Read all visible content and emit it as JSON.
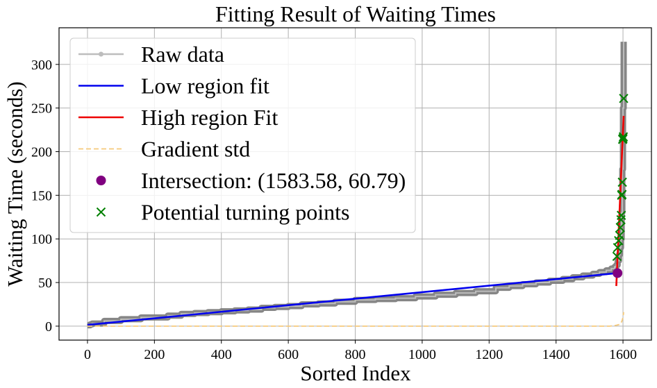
{
  "chart_data": {
    "type": "line",
    "title": "Fitting Result of Waiting Times",
    "xlabel": "Sorted Index",
    "ylabel": "Waiting Time (seconds)",
    "xlim": [
      -85,
      1685
    ],
    "ylim": [
      -16,
      342
    ],
    "xticks": [
      0,
      200,
      400,
      600,
      800,
      1000,
      1200,
      1400,
      1600
    ],
    "yticks": [
      0,
      50,
      100,
      150,
      200,
      250,
      300
    ],
    "grid": true,
    "legend_position": "top-left",
    "series": [
      {
        "name": "Raw data",
        "kind": "step-line",
        "color": "#808080",
        "x": [
          0,
          8,
          14,
          50,
          100,
          160,
          240,
          280,
          320,
          360,
          400,
          440,
          480,
          520,
          560,
          600,
          640,
          690,
          740,
          800,
          860,
          920,
          980,
          1040,
          1100,
          1160,
          1220,
          1260,
          1300,
          1340,
          1380,
          1420,
          1450,
          1480,
          1510,
          1530,
          1550,
          1565,
          1575,
          1580,
          1584,
          1588,
          1591,
          1594,
          1596,
          1598,
          1600,
          1602
        ],
        "y": [
          1,
          2,
          3,
          6,
          8,
          10,
          12,
          14,
          15,
          16,
          17,
          18,
          19,
          21,
          22,
          23,
          25,
          26,
          28,
          30,
          31,
          32,
          34,
          36,
          38,
          40,
          44,
          46,
          48,
          50,
          52,
          54,
          56,
          58,
          60,
          62,
          64,
          66,
          68,
          70,
          75,
          82,
          90,
          100,
          130,
          180,
          250,
          326
        ]
      },
      {
        "name": "Low region fit",
        "kind": "line",
        "color": "#0000ee",
        "x": [
          0,
          1583.58
        ],
        "y": [
          1.5,
          60.79
        ]
      },
      {
        "name": "High region Fit",
        "kind": "line",
        "color": "#ee0000",
        "x": [
          1580,
          1602
        ],
        "y": [
          46,
          241
        ]
      },
      {
        "name": "Gradient std",
        "kind": "dashed-line",
        "color": "#f5c97a",
        "x": [
          0,
          200,
          400,
          600,
          800,
          1000,
          1200,
          1400,
          1560,
          1580,
          1590,
          1596,
          1600,
          1602
        ],
        "y": [
          0,
          0,
          0,
          0,
          0,
          0,
          0,
          0,
          0,
          1,
          2,
          5,
          10,
          16
        ]
      },
      {
        "name": "Intersection: (1583.58, 60.79)",
        "kind": "marker",
        "color": "#800080",
        "x": [
          1583.58
        ],
        "y": [
          60.79
        ]
      },
      {
        "name": "Potential turning points",
        "kind": "x-marker",
        "color": "#008000",
        "x": [
          1582,
          1584,
          1587,
          1590,
          1592,
          1594,
          1595,
          1596,
          1597,
          1598,
          1599,
          1600,
          1601,
          1602
        ],
        "y": [
          80,
          90,
          98,
          104,
          113,
          122,
          127,
          150,
          151,
          165,
          214,
          215,
          217,
          261
        ]
      }
    ]
  }
}
